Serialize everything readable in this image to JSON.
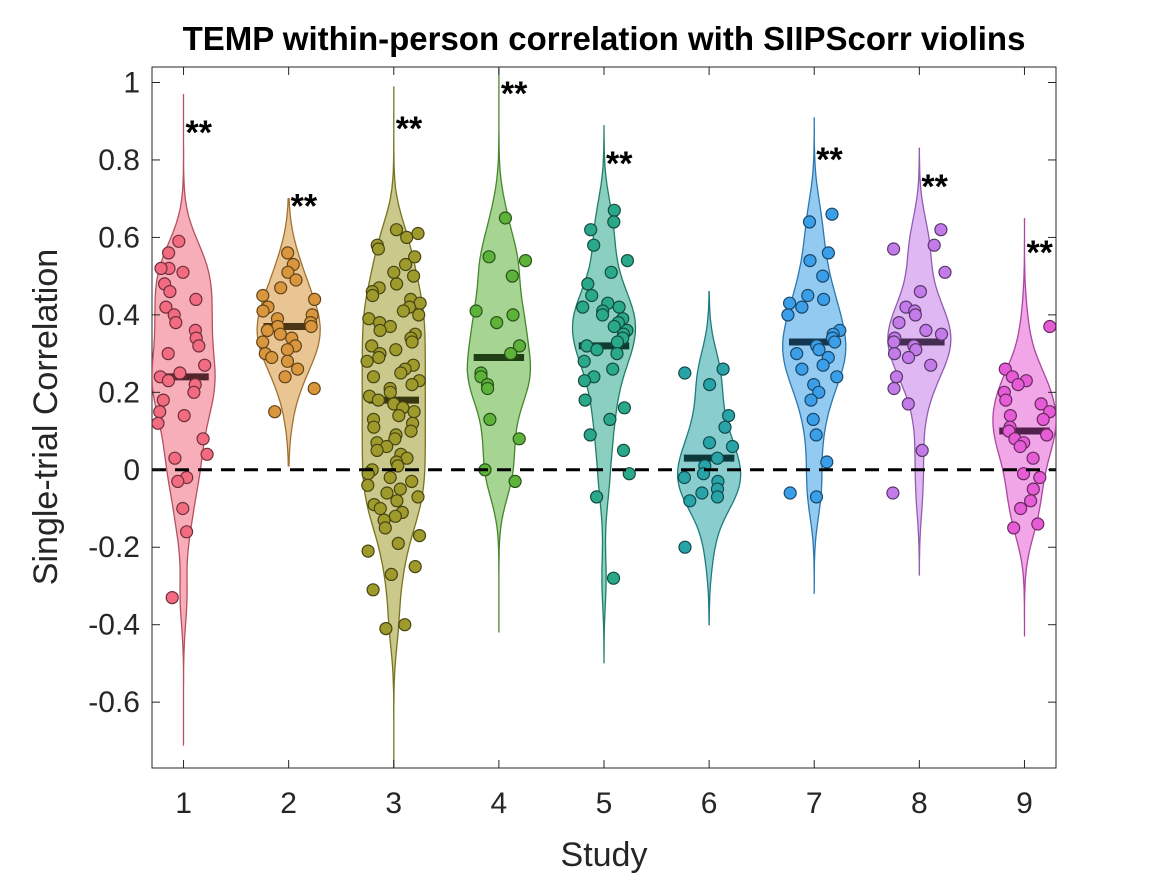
{
  "chart_data": {
    "type": "violin",
    "title": "TEMP within-person correlation with SIIPScorr violins",
    "xlabel": "Study",
    "ylabel": "Single-trial Correlation",
    "xlim": [
      0.7,
      9.3
    ],
    "ylim": [
      -0.77,
      1.04
    ],
    "categories": [
      "1",
      "2",
      "3",
      "4",
      "5",
      "6",
      "7",
      "8",
      "9"
    ],
    "yticks": [
      "-0.6",
      "-0.4",
      "-0.2",
      "0",
      "0.2",
      "0.4",
      "0.6",
      "0.8",
      "1"
    ],
    "ytick_values": [
      -0.6,
      -0.4,
      -0.2,
      0,
      0.2,
      0.4,
      0.6,
      0.8,
      1
    ],
    "reference_line": 0,
    "series": [
      {
        "x": 1,
        "color": "#f26b80",
        "range": [
          -0.71,
          0.97
        ],
        "median": 0.24,
        "sig": "**",
        "sig_y": 0.88,
        "points": [
          0.59,
          0.56,
          0.52,
          0.52,
          0.51,
          0.48,
          0.46,
          0.44,
          0.42,
          0.4,
          0.38,
          0.36,
          0.34,
          0.32,
          0.3,
          0.27,
          0.25,
          0.24,
          0.23,
          0.22,
          0.2,
          0.18,
          0.15,
          0.14,
          0.12,
          0.08,
          0.04,
          0.03,
          -0.02,
          -0.03,
          -0.1,
          -0.16,
          -0.33
        ]
      },
      {
        "x": 2,
        "color": "#d9963c",
        "range": [
          0.01,
          0.7
        ],
        "median": 0.37,
        "sig": "**",
        "sig_y": 0.69,
        "points": [
          0.56,
          0.53,
          0.51,
          0.49,
          0.47,
          0.45,
          0.44,
          0.42,
          0.41,
          0.4,
          0.39,
          0.38,
          0.37,
          0.37,
          0.36,
          0.35,
          0.34,
          0.33,
          0.32,
          0.31,
          0.3,
          0.29,
          0.28,
          0.26,
          0.24,
          0.21,
          0.15
        ]
      },
      {
        "x": 3,
        "color": "#9e9a2b",
        "range": [
          -0.77,
          0.99
        ],
        "median": 0.18,
        "sig": "**",
        "sig_y": 0.89,
        "points": [
          0.62,
          0.61,
          0.6,
          0.58,
          0.57,
          0.55,
          0.53,
          0.51,
          0.5,
          0.48,
          0.47,
          0.46,
          0.45,
          0.44,
          0.43,
          0.42,
          0.41,
          0.4,
          0.39,
          0.38,
          0.37,
          0.36,
          0.35,
          0.34,
          0.33,
          0.32,
          0.31,
          0.3,
          0.29,
          0.28,
          0.27,
          0.26,
          0.25,
          0.24,
          0.23,
          0.22,
          0.21,
          0.2,
          0.19,
          0.18,
          0.17,
          0.16,
          0.15,
          0.14,
          0.13,
          0.12,
          0.11,
          0.1,
          0.09,
          0.08,
          0.07,
          0.06,
          0.05,
          0.04,
          0.03,
          0.02,
          0.01,
          0.0,
          -0.01,
          -0.02,
          -0.03,
          -0.04,
          -0.05,
          -0.06,
          -0.07,
          -0.08,
          -0.09,
          -0.1,
          -0.11,
          -0.12,
          -0.13,
          -0.15,
          -0.17,
          -0.19,
          -0.21,
          -0.25,
          -0.27,
          -0.31,
          -0.4,
          -0.41
        ]
      },
      {
        "x": 4,
        "color": "#5db33a",
        "range": [
          -0.42,
          1.04
        ],
        "median": 0.29,
        "sig": "**",
        "sig_y": 0.98,
        "points": [
          0.65,
          0.55,
          0.54,
          0.5,
          0.41,
          0.4,
          0.38,
          0.32,
          0.3,
          0.25,
          0.24,
          0.22,
          0.21,
          0.13,
          0.08,
          0.0,
          -0.03
        ]
      },
      {
        "x": 5,
        "color": "#2aa88a",
        "range": [
          -0.5,
          0.89
        ],
        "median": 0.32,
        "sig": "**",
        "sig_y": 0.8,
        "points": [
          0.67,
          0.64,
          0.62,
          0.58,
          0.54,
          0.51,
          0.48,
          0.45,
          0.43,
          0.42,
          0.42,
          0.41,
          0.4,
          0.39,
          0.38,
          0.37,
          0.36,
          0.35,
          0.34,
          0.33,
          0.32,
          0.31,
          0.3,
          0.28,
          0.26,
          0.24,
          0.23,
          0.18,
          0.16,
          0.13,
          0.09,
          0.05,
          -0.01,
          -0.07,
          -0.28
        ]
      },
      {
        "x": 6,
        "color": "#28a4a8",
        "range": [
          -0.4,
          0.46
        ],
        "median": 0.03,
        "sig": "",
        "sig_y": 0,
        "points": [
          0.26,
          0.25,
          0.22,
          0.14,
          0.11,
          0.07,
          0.06,
          0.03,
          0.01,
          -0.01,
          -0.02,
          -0.03,
          -0.05,
          -0.06,
          -0.07,
          -0.08,
          -0.2
        ]
      },
      {
        "x": 7,
        "color": "#3a9ee8",
        "range": [
          -0.32,
          0.91
        ],
        "median": 0.33,
        "sig": "**",
        "sig_y": 0.81,
        "points": [
          0.66,
          0.64,
          0.56,
          0.54,
          0.5,
          0.45,
          0.44,
          0.43,
          0.42,
          0.4,
          0.36,
          0.35,
          0.34,
          0.33,
          0.32,
          0.31,
          0.3,
          0.29,
          0.27,
          0.26,
          0.24,
          0.22,
          0.2,
          0.18,
          0.13,
          0.09,
          0.02,
          -0.06,
          -0.07
        ]
      },
      {
        "x": 8,
        "color": "#c47bea",
        "range": [
          -0.27,
          0.83
        ],
        "median": 0.33,
        "sig": "**",
        "sig_y": 0.74,
        "points": [
          0.62,
          0.58,
          0.57,
          0.51,
          0.46,
          0.42,
          0.41,
          0.4,
          0.38,
          0.36,
          0.35,
          0.34,
          0.33,
          0.32,
          0.31,
          0.3,
          0.29,
          0.27,
          0.24,
          0.21,
          0.17,
          0.05,
          -0.06
        ]
      },
      {
        "x": 9,
        "color": "#e65cd6",
        "range": [
          -0.43,
          0.65
        ],
        "median": 0.1,
        "sig": "**",
        "sig_y": 0.57,
        "points": [
          0.37,
          0.26,
          0.24,
          0.23,
          0.22,
          0.2,
          0.18,
          0.17,
          0.15,
          0.14,
          0.13,
          0.11,
          0.1,
          0.09,
          0.08,
          0.07,
          0.06,
          0.03,
          -0.01,
          -0.02,
          -0.05,
          -0.08,
          -0.1,
          -0.14,
          -0.15
        ]
      }
    ]
  }
}
